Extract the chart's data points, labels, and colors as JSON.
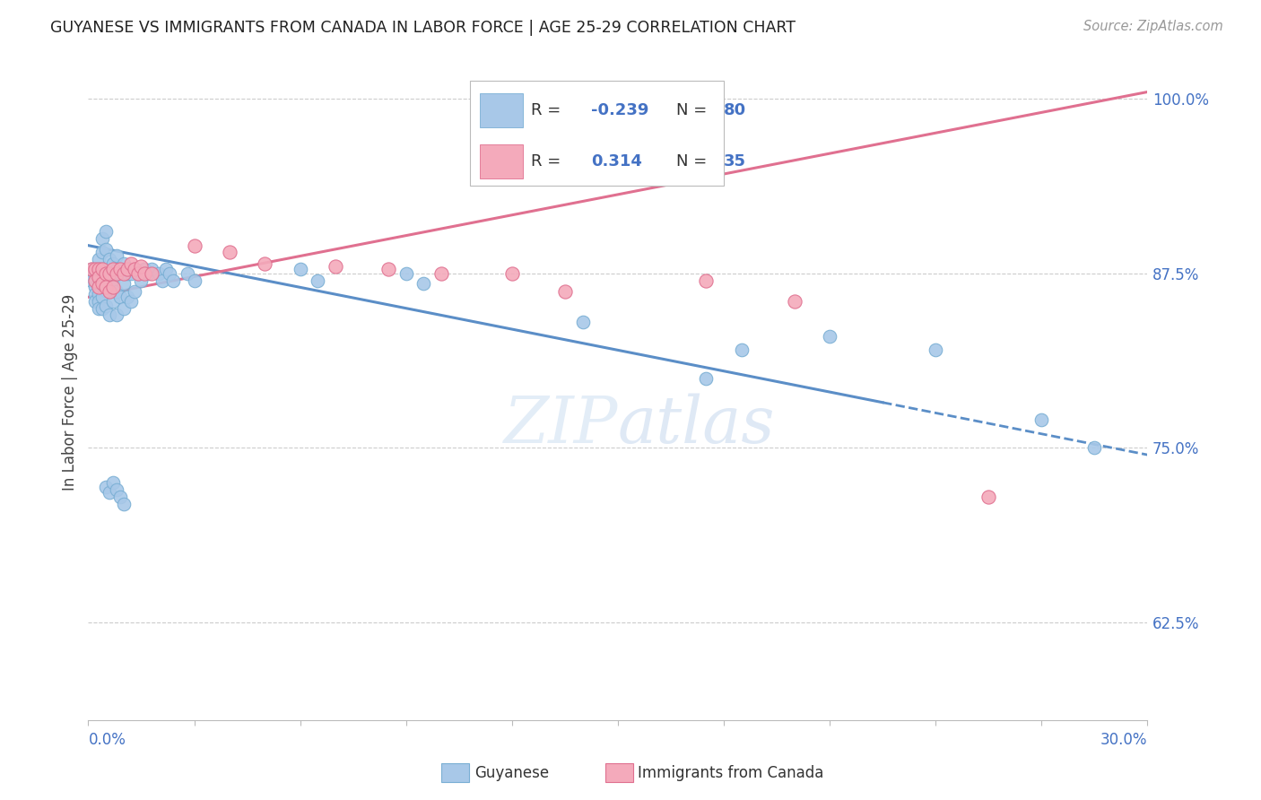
{
  "title": "GUYANESE VS IMMIGRANTS FROM CANADA IN LABOR FORCE | AGE 25-29 CORRELATION CHART",
  "source": "Source: ZipAtlas.com",
  "ylabel": "In Labor Force | Age 25-29",
  "xlim": [
    0.0,
    0.3
  ],
  "ylim": [
    0.555,
    1.025
  ],
  "yticks": [
    0.625,
    0.75,
    0.875,
    1.0
  ],
  "ytick_labels": [
    "62.5%",
    "75.0%",
    "87.5%",
    "100.0%"
  ],
  "series1_name": "Guyanese",
  "series1_color": "#A8C8E8",
  "series1_edge_color": "#7AAFD4",
  "series1_line_color": "#5B8EC7",
  "series1_line_solid_end": 0.225,
  "series2_name": "Immigrants from Canada",
  "series2_color": "#F4AABB",
  "series2_edge_color": "#E07090",
  "series2_line_color": "#E07090",
  "blue_text_color": "#4472C4",
  "title_color": "#222222",
  "source_color": "#999999",
  "axis_color": "#4472C4",
  "grid_color": "#CCCCCC",
  "background_color": "#FFFFFF",
  "series1_x": [
    0.001,
    0.001,
    0.001,
    0.002,
    0.002,
    0.002,
    0.002,
    0.002,
    0.002,
    0.003,
    0.003,
    0.003,
    0.003,
    0.003,
    0.003,
    0.003,
    0.004,
    0.004,
    0.004,
    0.004,
    0.004,
    0.004,
    0.005,
    0.005,
    0.005,
    0.005,
    0.005,
    0.006,
    0.006,
    0.006,
    0.006,
    0.007,
    0.007,
    0.007,
    0.008,
    0.008,
    0.008,
    0.008,
    0.009,
    0.009,
    0.01,
    0.01,
    0.01,
    0.011,
    0.011,
    0.012,
    0.012,
    0.013,
    0.013,
    0.014,
    0.015,
    0.016,
    0.017,
    0.018,
    0.02,
    0.021,
    0.022,
    0.023,
    0.024,
    0.028,
    0.03,
    0.06,
    0.065,
    0.09,
    0.095,
    0.14,
    0.175,
    0.185,
    0.21,
    0.24,
    0.27,
    0.285,
    0.005,
    0.006,
    0.007,
    0.008,
    0.009,
    0.01
  ],
  "series1_y": [
    0.878,
    0.872,
    0.87,
    0.878,
    0.875,
    0.87,
    0.865,
    0.86,
    0.855,
    0.885,
    0.878,
    0.872,
    0.867,
    0.86,
    0.855,
    0.85,
    0.9,
    0.89,
    0.878,
    0.87,
    0.858,
    0.85,
    0.905,
    0.892,
    0.878,
    0.865,
    0.852,
    0.885,
    0.875,
    0.862,
    0.845,
    0.882,
    0.87,
    0.855,
    0.888,
    0.878,
    0.862,
    0.845,
    0.875,
    0.858,
    0.882,
    0.868,
    0.85,
    0.875,
    0.858,
    0.875,
    0.855,
    0.878,
    0.862,
    0.875,
    0.87,
    0.878,
    0.875,
    0.878,
    0.875,
    0.87,
    0.878,
    0.875,
    0.87,
    0.875,
    0.87,
    0.878,
    0.87,
    0.875,
    0.868,
    0.84,
    0.8,
    0.82,
    0.83,
    0.82,
    0.77,
    0.75,
    0.722,
    0.718,
    0.725,
    0.72,
    0.715,
    0.71
  ],
  "series2_x": [
    0.001,
    0.002,
    0.002,
    0.003,
    0.003,
    0.003,
    0.004,
    0.004,
    0.005,
    0.005,
    0.006,
    0.006,
    0.007,
    0.007,
    0.008,
    0.009,
    0.01,
    0.011,
    0.012,
    0.013,
    0.014,
    0.015,
    0.016,
    0.018,
    0.03,
    0.04,
    0.05,
    0.07,
    0.085,
    0.1,
    0.12,
    0.135,
    0.175,
    0.2,
    0.255
  ],
  "series2_y": [
    0.878,
    0.878,
    0.87,
    0.878,
    0.872,
    0.865,
    0.878,
    0.868,
    0.875,
    0.865,
    0.875,
    0.862,
    0.878,
    0.865,
    0.875,
    0.878,
    0.875,
    0.878,
    0.882,
    0.878,
    0.875,
    0.88,
    0.875,
    0.875,
    0.895,
    0.89,
    0.882,
    0.88,
    0.878,
    0.875,
    0.875,
    0.862,
    0.87,
    0.855,
    0.715
  ],
  "trendline1_x0": 0.0,
  "trendline1_y0": 0.895,
  "trendline1_x1": 0.3,
  "trendline1_y1": 0.745,
  "trendline1_solid_end": 0.225,
  "trendline2_x0": 0.0,
  "trendline2_y0": 0.858,
  "trendline2_x1": 0.3,
  "trendline2_y1": 1.005
}
